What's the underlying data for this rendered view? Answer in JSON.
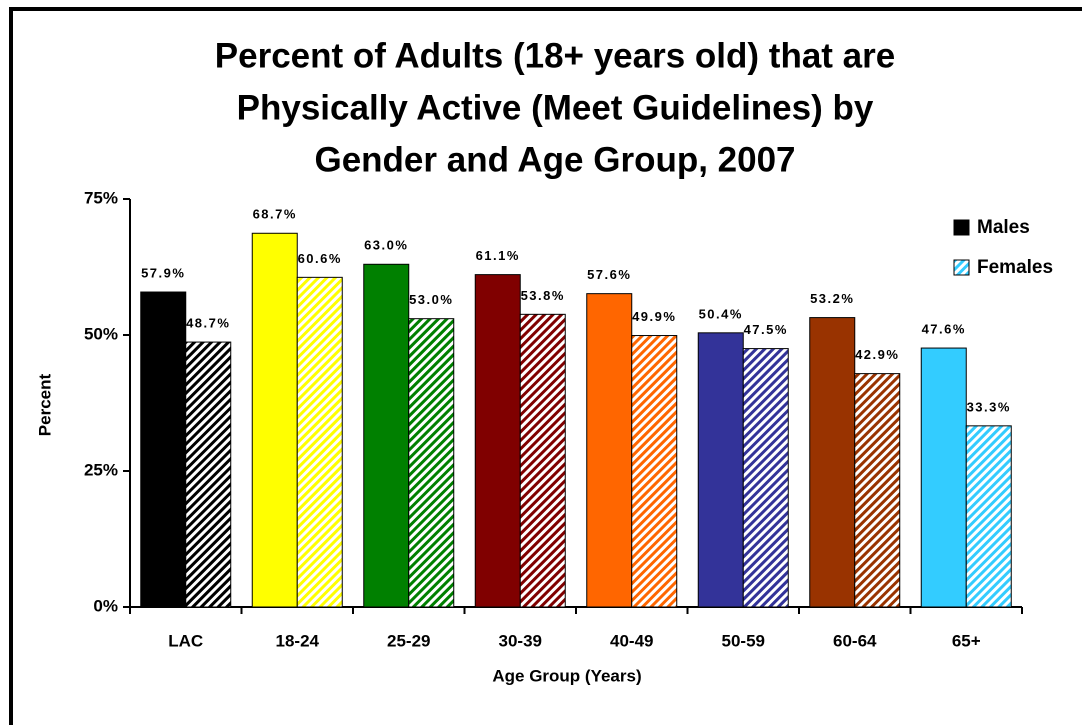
{
  "chart_data": {
    "type": "bar",
    "title": [
      "Percent of Adults (18+ years old) that are",
      "Physically Active (Meet Guidelines) by",
      "Gender and Age Group, 2007"
    ],
    "x_label": "Age Group (Years)",
    "y_label": "Percent",
    "categories": [
      "LAC",
      "18-24",
      "25-29",
      "30-39",
      "40-49",
      "50-59",
      "60-64",
      "65+"
    ],
    "category_colors": [
      "#000000",
      "#ffff00",
      "#008000",
      "#800000",
      "#ff6600",
      "#333399",
      "#993300",
      "#33ccff"
    ],
    "series": [
      {
        "name": "Males",
        "color": "#000000",
        "hatched": false,
        "values": [
          57.9,
          68.7,
          63.0,
          61.1,
          57.6,
          50.4,
          53.2,
          47.6
        ],
        "value_labels": [
          "57.9%",
          "68.7%",
          "63.0%",
          "61.1%",
          "57.6%",
          "50.4%",
          "53.2%",
          "47.6%"
        ]
      },
      {
        "name": "Females",
        "color": "#33ccff",
        "hatched": true,
        "values": [
          48.7,
          60.6,
          53.0,
          53.8,
          49.9,
          47.5,
          42.9,
          33.3
        ],
        "value_labels": [
          "48.7%",
          "60.6%",
          "53.0%",
          "53.8%",
          "49.9%",
          "47.5%",
          "42.9%",
          "33.3%"
        ]
      }
    ],
    "ylim": [
      0,
      75
    ],
    "yticks": [
      {
        "value": 0,
        "label": "0%"
      },
      {
        "value": 25,
        "label": "25%"
      },
      {
        "value": 50,
        "label": "50%"
      },
      {
        "value": 75,
        "label": "75%"
      }
    ],
    "legend": "top-right",
    "grid": false
  }
}
